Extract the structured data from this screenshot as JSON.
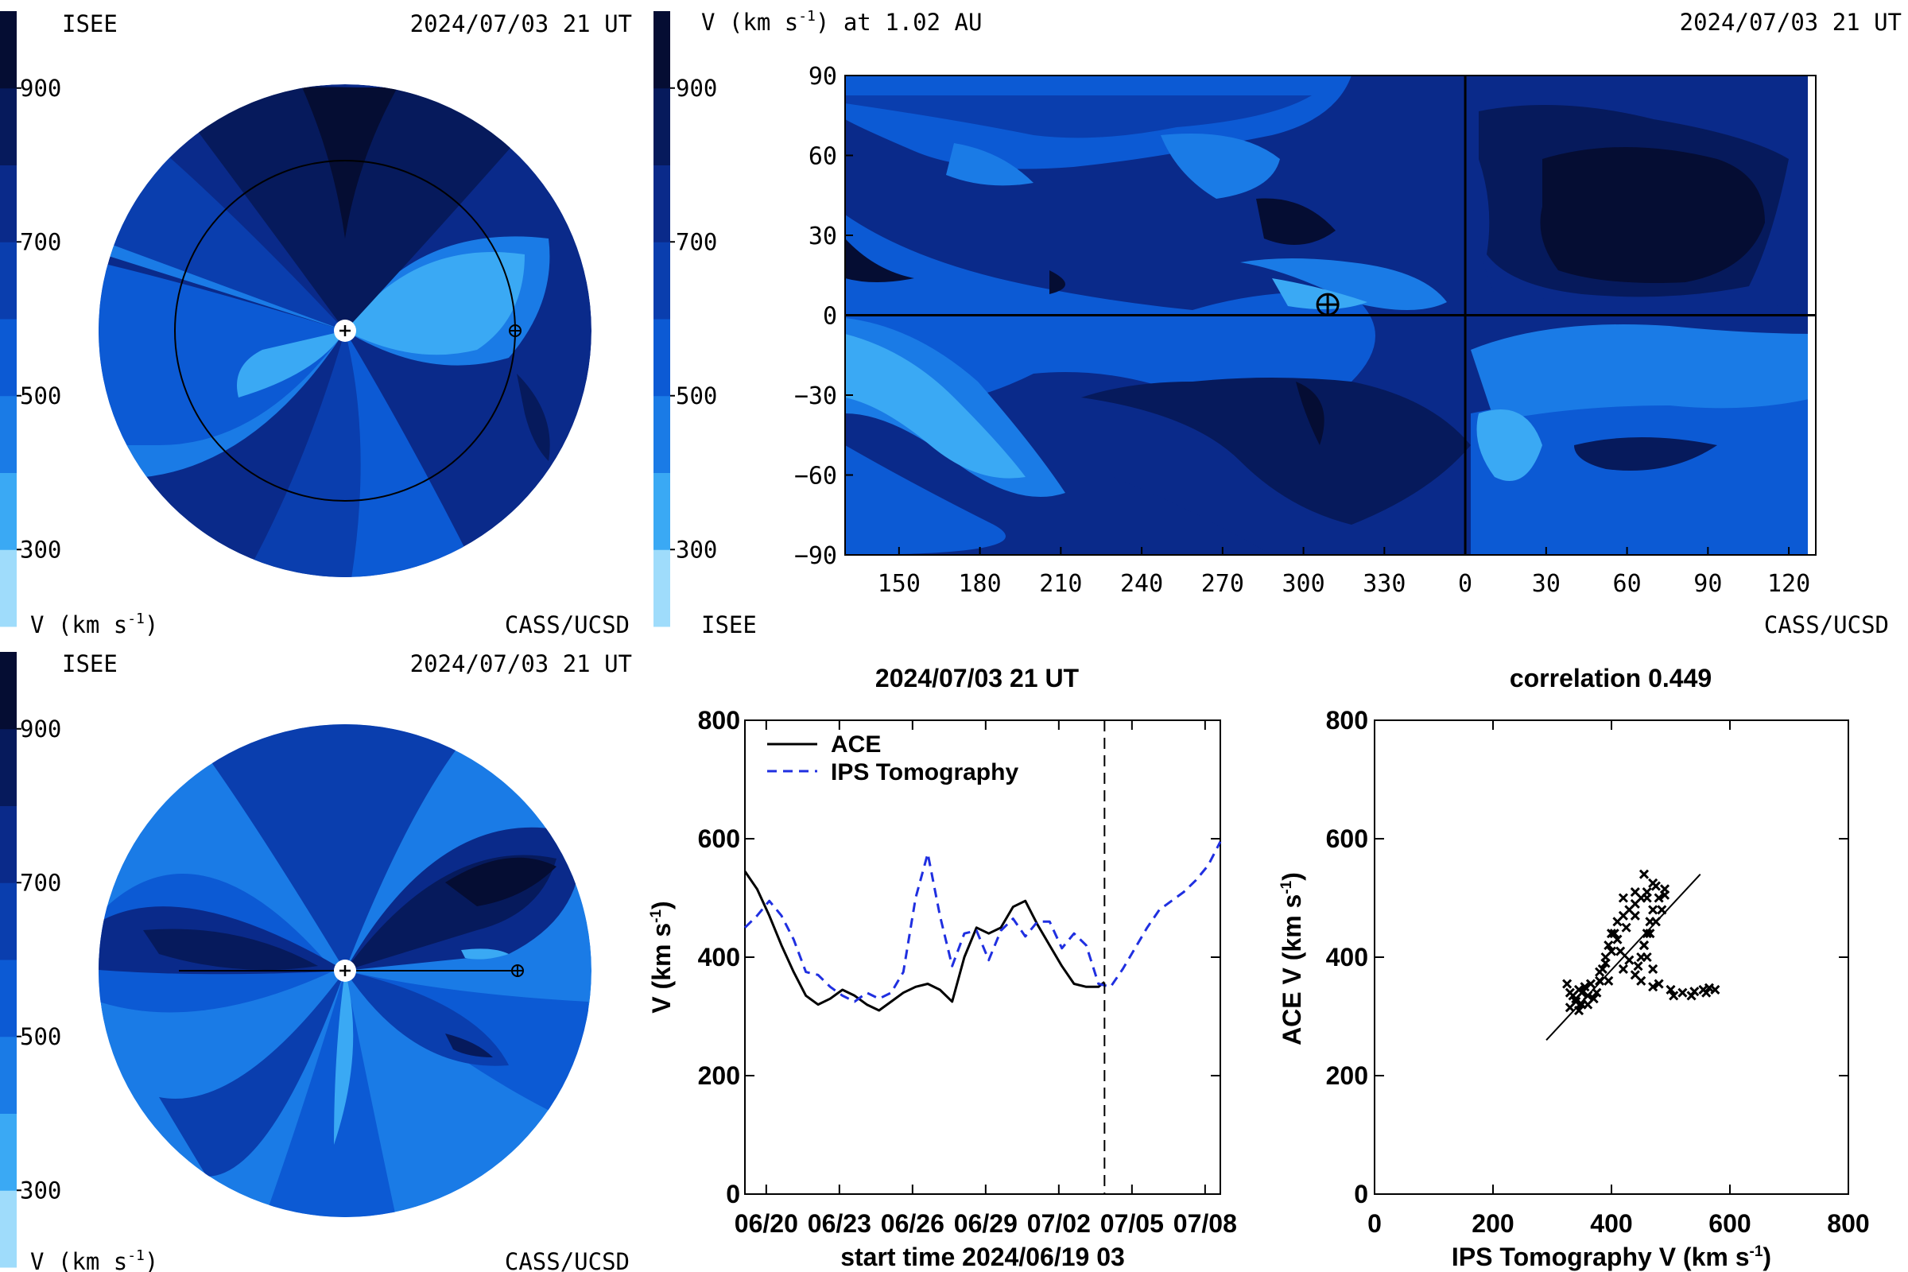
{
  "panels": {
    "top_left": {
      "top_left_label": "ISEE",
      "timestamp": "2024/07/03 21 UT",
      "bottom_left_label": "V (km s",
      "bottom_left_sup": "-1",
      "bottom_left_close": ")",
      "bottom_right_label": "CASS/UCSD"
    },
    "top_right": {
      "title_prefix": "V (km s",
      "title_sup": "-1",
      "title_suffix": ") at 1.02 AU",
      "timestamp": "2024/07/03 21 UT",
      "bottom_left_label": "ISEE",
      "bottom_right_label": "CASS/UCSD"
    },
    "bottom_left": {
      "top_left_label": "ISEE",
      "timestamp": "2024/07/03 21 UT",
      "bottom_left_label": "V (km s",
      "bottom_left_sup": "-1",
      "bottom_left_close": ")",
      "bottom_right_label": "CASS/UCSD"
    }
  },
  "colorbar": {
    "tick_labels": [
      "900",
      "700",
      "500",
      "300"
    ],
    "tick_values": [
      900,
      700,
      500,
      300
    ],
    "range": [
      200,
      1000
    ],
    "bands": [
      "#9fdcfb",
      "#3aa9f4",
      "#1a7be6",
      "#0c5ad4",
      "#0a3eae",
      "#0a2a8a",
      "#061a5c",
      "#050d33"
    ]
  },
  "colors": {
    "level_1": "#9fdcfb",
    "level_2": "#3aa9f4",
    "level_3": "#1a7be6",
    "level_4": "#0c5ad4",
    "level_5": "#0a3eae",
    "level_6": "#0a2a8a",
    "level_7": "#061a5c",
    "level_8": "#050d33",
    "ips_line": "#1f2fe0",
    "ace_line": "#000000"
  },
  "chart_data": [
    {
      "type": "heatmap",
      "x_tick_labels": [
        "150",
        "180",
        "210",
        "240",
        "270",
        "300",
        "330",
        "0",
        "30",
        "60",
        "90",
        "120"
      ],
      "y_tick_labels": [
        "90",
        "60",
        "30",
        "0",
        "−30",
        "−60",
        "−90"
      ],
      "y_tick_values": [
        90,
        60,
        30,
        0,
        -30,
        -60,
        -90
      ],
      "ylim": [
        -90,
        90
      ],
      "earth_marker": {
        "longitude": 309,
        "latitude": 4
      },
      "reference_lines": {
        "latitude": 0,
        "longitude": 0
      }
    },
    {
      "type": "line",
      "title": "2024/07/03 21 UT",
      "xlabel": "start time 2024/06/19 03",
      "ylabel": "V (km s",
      "ylabel_sup": "-1",
      "ylabel_close": ")",
      "x_tick_labels": [
        "06/20",
        "06/23",
        "06/26",
        "06/29",
        "07/02",
        "07/05",
        "07/08"
      ],
      "y_tick_labels": [
        "800",
        "600",
        "400",
        "200",
        "0"
      ],
      "y_tick_values": [
        800,
        600,
        400,
        200,
        0
      ],
      "ylim": [
        0,
        800
      ],
      "xlim": [
        "2024-06-19 03:00",
        "2024-07-08 15:00"
      ],
      "current_time": "2024-07-03 21:00",
      "series": [
        {
          "name": "ACE",
          "x": [
            "2024-06-19 03:00",
            "2024-06-19 15:00",
            "2024-06-20 03:00",
            "2024-06-20 15:00",
            "2024-06-21 03:00",
            "2024-06-21 15:00",
            "2024-06-22 03:00",
            "2024-06-22 15:00",
            "2024-06-23 03:00",
            "2024-06-23 15:00",
            "2024-06-24 03:00",
            "2024-06-24 15:00",
            "2024-06-25 03:00",
            "2024-06-25 15:00",
            "2024-06-26 03:00",
            "2024-06-26 15:00",
            "2024-06-27 03:00",
            "2024-06-27 15:00",
            "2024-06-28 03:00",
            "2024-06-28 15:00",
            "2024-06-29 03:00",
            "2024-06-29 15:00",
            "2024-06-30 03:00",
            "2024-06-30 15:00",
            "2024-07-01 03:00",
            "2024-07-01 15:00",
            "2024-07-02 03:00",
            "2024-07-02 15:00",
            "2024-07-03 03:00",
            "2024-07-03 15:00",
            "2024-07-03 21:00"
          ],
          "values": [
            545,
            515,
            470,
            420,
            375,
            335,
            320,
            330,
            345,
            335,
            320,
            310,
            325,
            340,
            350,
            355,
            345,
            325,
            400,
            450,
            440,
            450,
            485,
            495,
            455,
            420,
            385,
            355,
            350,
            350,
            358
          ]
        },
        {
          "name": "IPS Tomography",
          "x": [
            "2024-06-19 03:00",
            "2024-06-19 15:00",
            "2024-06-20 03:00",
            "2024-06-20 15:00",
            "2024-06-21 03:00",
            "2024-06-21 15:00",
            "2024-06-22 03:00",
            "2024-06-22 15:00",
            "2024-06-23 03:00",
            "2024-06-23 15:00",
            "2024-06-24 03:00",
            "2024-06-24 15:00",
            "2024-06-25 03:00",
            "2024-06-25 15:00",
            "2024-06-26 03:00",
            "2024-06-26 15:00",
            "2024-06-27 03:00",
            "2024-06-27 15:00",
            "2024-06-28 03:00",
            "2024-06-28 15:00",
            "2024-06-29 03:00",
            "2024-06-29 15:00",
            "2024-06-30 03:00",
            "2024-06-30 15:00",
            "2024-07-01 03:00",
            "2024-07-01 15:00",
            "2024-07-02 03:00",
            "2024-07-02 15:00",
            "2024-07-03 03:00",
            "2024-07-03 15:00",
            "2024-07-04 03:00",
            "2024-07-04 15:00",
            "2024-07-05 03:00",
            "2024-07-05 15:00",
            "2024-07-06 03:00",
            "2024-07-06 15:00",
            "2024-07-07 03:00",
            "2024-07-07 15:00",
            "2024-07-08 03:00",
            "2024-07-08 15:00"
          ],
          "values": [
            450,
            470,
            495,
            470,
            430,
            375,
            370,
            350,
            335,
            325,
            340,
            330,
            340,
            375,
            500,
            575,
            470,
            385,
            440,
            445,
            395,
            445,
            465,
            435,
            460,
            460,
            415,
            440,
            420,
            355,
            350,
            380,
            415,
            450,
            480,
            495,
            510,
            530,
            555,
            595
          ]
        }
      ]
    },
    {
      "type": "scatter",
      "title": "correlation 0.449",
      "xlabel": "IPS Tomography V (km s",
      "xlabel_sup": "-1",
      "xlabel_close": ")",
      "ylabel": "ACE V (km s",
      "ylabel_sup": "-1",
      "ylabel_close": ")",
      "x_tick_labels": [
        "0",
        "200",
        "400",
        "600",
        "800"
      ],
      "x_tick_values": [
        0,
        200,
        400,
        600,
        800
      ],
      "y_tick_labels": [
        "800",
        "600",
        "400",
        "200",
        "0"
      ],
      "y_tick_values": [
        800,
        600,
        400,
        200,
        0
      ],
      "xlim": [
        0,
        800
      ],
      "ylim": [
        0,
        800
      ],
      "fit_line": [
        [
          290,
          260
        ],
        [
          550,
          540
        ]
      ],
      "points": [
        [
          330,
          340
        ],
        [
          340,
          330
        ],
        [
          350,
          320
        ],
        [
          335,
          335
        ],
        [
          325,
          355
        ],
        [
          360,
          320
        ],
        [
          345,
          345
        ],
        [
          370,
          330
        ],
        [
          355,
          350
        ],
        [
          375,
          340
        ],
        [
          380,
          360
        ],
        [
          385,
          380
        ],
        [
          390,
          400
        ],
        [
          395,
          420
        ],
        [
          405,
          440
        ],
        [
          410,
          460
        ],
        [
          420,
          470
        ],
        [
          430,
          480
        ],
        [
          440,
          490
        ],
        [
          450,
          500
        ],
        [
          460,
          510
        ],
        [
          475,
          520
        ],
        [
          490,
          515
        ],
        [
          480,
          500
        ],
        [
          470,
          480
        ],
        [
          465,
          460
        ],
        [
          460,
          440
        ],
        [
          455,
          420
        ],
        [
          450,
          400
        ],
        [
          445,
          385
        ],
        [
          440,
          370
        ],
        [
          450,
          360
        ],
        [
          470,
          350
        ],
        [
          500,
          345
        ],
        [
          520,
          340
        ],
        [
          540,
          342
        ],
        [
          555,
          345
        ],
        [
          565,
          348
        ],
        [
          575,
          345
        ],
        [
          560,
          340
        ],
        [
          535,
          335
        ],
        [
          505,
          335
        ],
        [
          480,
          355
        ],
        [
          470,
          380
        ],
        [
          460,
          400
        ],
        [
          455,
          420
        ],
        [
          465,
          440
        ],
        [
          475,
          460
        ],
        [
          485,
          480
        ],
        [
          490,
          505
        ],
        [
          470,
          525
        ],
        [
          455,
          540
        ],
        [
          460,
          500
        ],
        [
          440,
          470
        ],
        [
          425,
          450
        ],
        [
          410,
          430
        ],
        [
          400,
          410
        ],
        [
          390,
          390
        ],
        [
          380,
          375
        ],
        [
          365,
          355
        ],
        [
          350,
          340
        ],
        [
          340,
          325
        ],
        [
          330,
          315
        ],
        [
          345,
          310
        ],
        [
          360,
          335
        ],
        [
          395,
          360
        ],
        [
          420,
          380
        ],
        [
          430,
          395
        ],
        [
          415,
          410
        ],
        [
          400,
          440
        ],
        [
          420,
          500
        ],
        [
          440,
          510
        ]
      ]
    }
  ]
}
